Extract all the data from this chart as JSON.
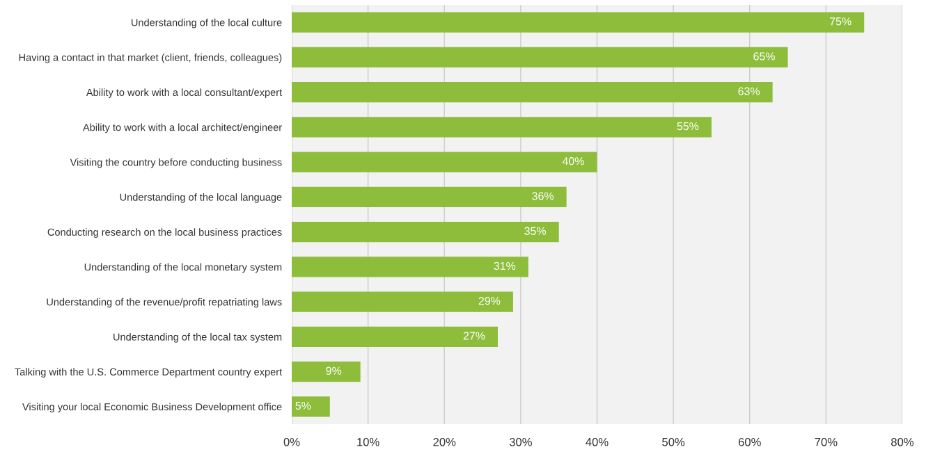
{
  "chart_data": {
    "type": "bar",
    "orientation": "horizontal",
    "categories": [
      "Understanding of the local culture",
      "Having a contact in that market (client, friends, colleagues)",
      "Ability to work with a local consultant/expert",
      "Ability to work with a local architect/engineer",
      "Visiting the country before conducting business",
      "Understanding of the local language",
      "Conducting research on the local business practices",
      "Understanding of the local monetary system",
      "Understanding of the revenue/profit repatriating laws",
      "Understanding of the local tax system",
      "Talking with the U.S. Commerce Department country expert",
      "Visiting your local Economic Business Development office"
    ],
    "values": [
      75,
      65,
      63,
      55,
      40,
      36,
      35,
      31,
      29,
      27,
      9,
      5
    ],
    "value_labels": [
      "75%",
      "65%",
      "63%",
      "55%",
      "40%",
      "36%",
      "35%",
      "31%",
      "29%",
      "27%",
      "9%",
      "5%"
    ],
    "color": "#8dbd3b",
    "xlim": [
      0,
      80
    ],
    "xticks": [
      {
        "value": 0,
        "label": "0%"
      },
      {
        "value": 10,
        "label": "10%"
      },
      {
        "value": 20,
        "label": "20%"
      },
      {
        "value": 30,
        "label": "30%"
      },
      {
        "value": 40,
        "label": "40%"
      },
      {
        "value": 50,
        "label": "50%"
      },
      {
        "value": 60,
        "label": "60%"
      },
      {
        "value": 70,
        "label": "70%"
      },
      {
        "value": 80,
        "label": "80%"
      }
    ],
    "grid": "x"
  }
}
